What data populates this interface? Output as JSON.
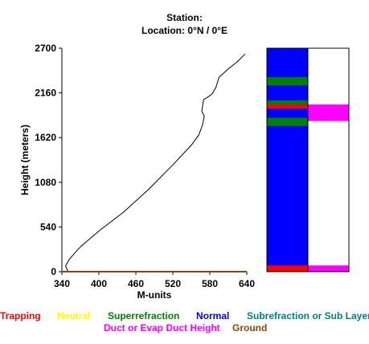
{
  "header": {
    "station_line": "Station:",
    "location_line": "Location:   0°N /   0°E"
  },
  "chart_data": {
    "type": "line",
    "xlabel": "M-units",
    "ylabel": "Height (meters)",
    "xlim": [
      340,
      640
    ],
    "ylim": [
      0,
      2700
    ],
    "xticks": [
      "340",
      "400",
      "460",
      "520",
      "580",
      "640"
    ],
    "yticks": [
      "0",
      "540",
      "1080",
      "1620",
      "2160",
      "2700"
    ],
    "grid": false,
    "series": [
      {
        "line_color": "#000000",
        "x": [
          350,
          346,
          352,
          370,
          400,
          440,
          480,
          520,
          550,
          562,
          568,
          571,
          567,
          570,
          577,
          584,
          590,
          595,
          610,
          625,
          637
        ],
        "y": [
          0,
          70,
          150,
          300,
          490,
          720,
          990,
          1290,
          1530,
          1650,
          1770,
          1880,
          1940,
          2080,
          2110,
          2150,
          2230,
          2350,
          2450,
          2540,
          2630
        ]
      },
      {
        "line_color": "#8b4513",
        "x": [
          340,
          640
        ],
        "y": [
          0,
          0
        ]
      }
    ],
    "layer_bars": {
      "left_column": {
        "base_color": "#0000ff",
        "bands": [
          {
            "bottom": 0,
            "top": 75,
            "color": "#ff0000"
          },
          {
            "bottom": 1760,
            "top": 1860,
            "color": "#008000"
          },
          {
            "bottom": 1970,
            "top": 2020,
            "color": "#ff0000"
          },
          {
            "bottom": 2020,
            "top": 2070,
            "color": "#008000"
          },
          {
            "bottom": 2250,
            "top": 2350,
            "color": "#008000"
          }
        ]
      },
      "right_column": {
        "base_color": "#ffffff",
        "bands": [
          {
            "bottom": 0,
            "top": 75,
            "color": "#ff00ff"
          },
          {
            "bottom": 1820,
            "top": 2020,
            "color": "#ff00ff"
          }
        ]
      }
    },
    "legend": {
      "placement": "bottom",
      "items": [
        {
          "label": "Trapping",
          "color": "#ff0000"
        },
        {
          "label": "Neutral",
          "color": "#ffff00"
        },
        {
          "label": "Superrefraction",
          "color": "#008000"
        },
        {
          "label": "Normal",
          "color": "#0000ff"
        },
        {
          "label": "Subrefraction or Sub Layer",
          "color": "#008080"
        },
        {
          "label": "Duct or Evap Duct Height",
          "color": "#ff00ff"
        },
        {
          "label": "Ground",
          "color": "#8b4513"
        }
      ]
    }
  }
}
